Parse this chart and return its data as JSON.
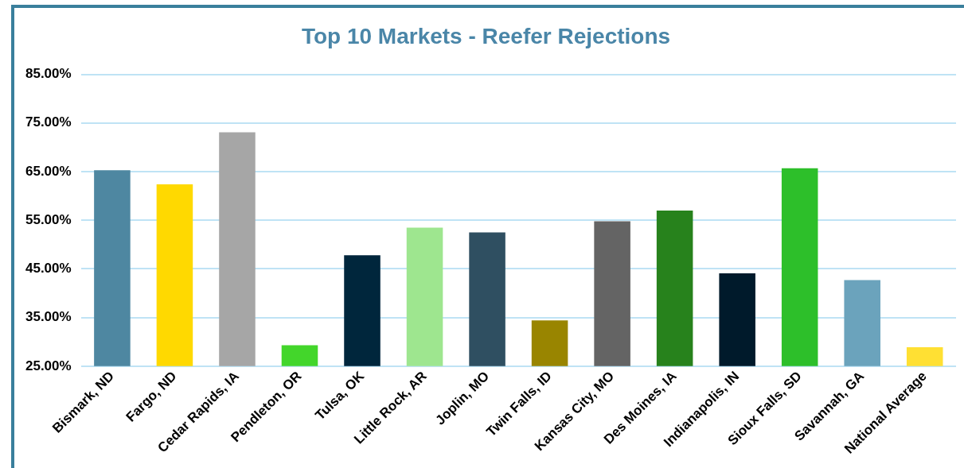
{
  "chart_data": {
    "type": "bar",
    "title": "Top 10 Markets - Reefer Rejections",
    "categories": [
      "Bismark, ND",
      "Fargo, ND",
      "Cedar Rapids, IA",
      "Pendleton, OR",
      "Tulsa, OK",
      "Little Rock, AR",
      "Joplin, MO",
      "Twin Falls, ID",
      "Kansas City, MO",
      "Des Moines, IA",
      "Indianapolis, IN",
      "Sioux Falls, SD",
      "Savannah, GA",
      "National Average"
    ],
    "values": [
      65.3,
      62.4,
      73.1,
      29.3,
      47.8,
      53.5,
      52.5,
      34.4,
      54.8,
      57.0,
      44.1,
      65.7,
      42.7,
      28.9
    ],
    "colors": [
      "#4e87a1",
      "#ffd900",
      "#a6a6a6",
      "#43d62b",
      "#00263c",
      "#9ee68f",
      "#2f4f61",
      "#998500",
      "#646464",
      "#27821c",
      "#001a2b",
      "#2dbf2a",
      "#6ba3bc",
      "#ffe033"
    ],
    "ylim": [
      25,
      85
    ],
    "yticks": [
      {
        "value": 25,
        "label": "25.00%"
      },
      {
        "value": 35,
        "label": "35.00%"
      },
      {
        "value": 45,
        "label": "45.00%"
      },
      {
        "value": 55,
        "label": "55.00%"
      },
      {
        "value": 65,
        "label": "65.00%"
      },
      {
        "value": 75,
        "label": "75.00%"
      },
      {
        "value": 85,
        "label": "85.00%"
      }
    ],
    "grid": "y",
    "legend": false
  }
}
